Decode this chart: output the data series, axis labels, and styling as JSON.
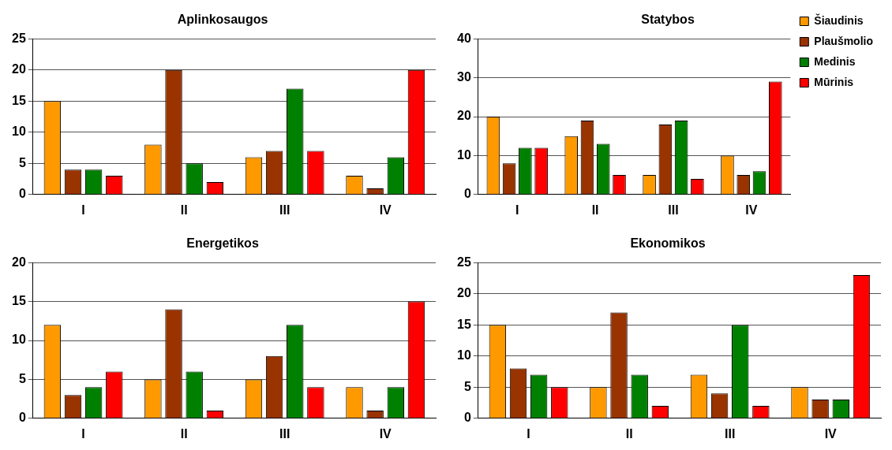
{
  "chart_data": [
    {
      "type": "bar",
      "title": "Aplinkosaugos",
      "categories": [
        "I",
        "II",
        "III",
        "IV"
      ],
      "ylim": [
        0,
        25
      ],
      "yticks": [
        0,
        5,
        10,
        15,
        20,
        25
      ],
      "grid": "y",
      "legend": false,
      "series": [
        {
          "color": "#ff9900",
          "values": [
            15,
            8,
            6,
            3
          ]
        },
        {
          "color": "#993300",
          "values": [
            4,
            20,
            7,
            1
          ]
        },
        {
          "color": "#008000",
          "values": [
            4,
            5,
            17,
            6
          ]
        },
        {
          "color": "#ff0000",
          "values": [
            3,
            2,
            7,
            20
          ]
        }
      ]
    },
    {
      "type": "bar",
      "title": "Statybos",
      "categories": [
        "I",
        "II",
        "III",
        "IV"
      ],
      "ylim": [
        0,
        40
      ],
      "yticks": [
        0,
        10,
        20,
        30,
        40
      ],
      "grid": "y",
      "legend": "top right",
      "series": [
        {
          "name": "Šiaudinis",
          "color": "#ff9900",
          "values": [
            20,
            15,
            5,
            10
          ]
        },
        {
          "name": "Plaušmolio",
          "color": "#993300",
          "values": [
            8,
            19,
            18,
            5
          ]
        },
        {
          "name": "Medinis",
          "color": "#008000",
          "values": [
            12,
            13,
            19,
            6
          ]
        },
        {
          "name": "Mūrinis",
          "color": "#ff0000",
          "values": [
            12,
            5,
            4,
            29
          ]
        }
      ]
    },
    {
      "type": "bar",
      "title": "Energetikos",
      "categories": [
        "I",
        "II",
        "III",
        "IV"
      ],
      "ylim": [
        0,
        20
      ],
      "yticks": [
        0,
        5,
        10,
        15,
        20
      ],
      "grid": "y",
      "legend": false,
      "series": [
        {
          "color": "#ff9900",
          "values": [
            12,
            5,
            5,
            4
          ]
        },
        {
          "color": "#993300",
          "values": [
            3,
            14,
            8,
            1
          ]
        },
        {
          "color": "#008000",
          "values": [
            4,
            6,
            12,
            4
          ]
        },
        {
          "color": "#ff0000",
          "values": [
            6,
            1,
            4,
            15
          ]
        }
      ]
    },
    {
      "type": "bar",
      "title": "Ekonomikos",
      "categories": [
        "I",
        "II",
        "III",
        "IV"
      ],
      "ylim": [
        0,
        25
      ],
      "yticks": [
        0,
        5,
        10,
        15,
        20,
        25
      ],
      "grid": "y",
      "legend": false,
      "series": [
        {
          "color": "#ff9900",
          "values": [
            15,
            5,
            7,
            5
          ]
        },
        {
          "color": "#993300",
          "values": [
            8,
            17,
            4,
            3
          ]
        },
        {
          "color": "#008000",
          "values": [
            7,
            7,
            15,
            3
          ]
        },
        {
          "color": "#ff0000",
          "values": [
            5,
            2,
            2,
            23
          ]
        }
      ]
    }
  ]
}
